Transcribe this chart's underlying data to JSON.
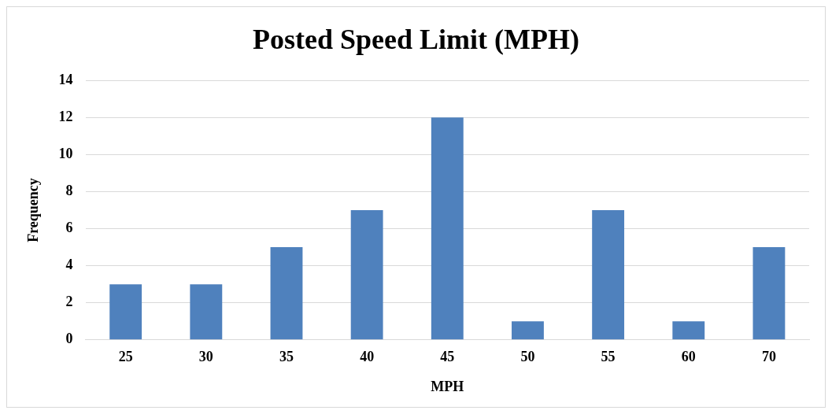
{
  "chart_data": {
    "type": "bar",
    "title": "Posted Speed Limit (MPH)",
    "xlabel": "MPH",
    "ylabel": "Frequency",
    "categories": [
      "25",
      "30",
      "35",
      "40",
      "45",
      "50",
      "55",
      "60",
      "70"
    ],
    "values": [
      3,
      3,
      5,
      7,
      12,
      1,
      7,
      1,
      5
    ],
    "color": "#4f81bd",
    "ylim": [
      0,
      14
    ],
    "yticks": [
      0,
      2,
      4,
      6,
      8,
      10,
      12,
      14
    ],
    "grid": "y",
    "legend": false
  }
}
